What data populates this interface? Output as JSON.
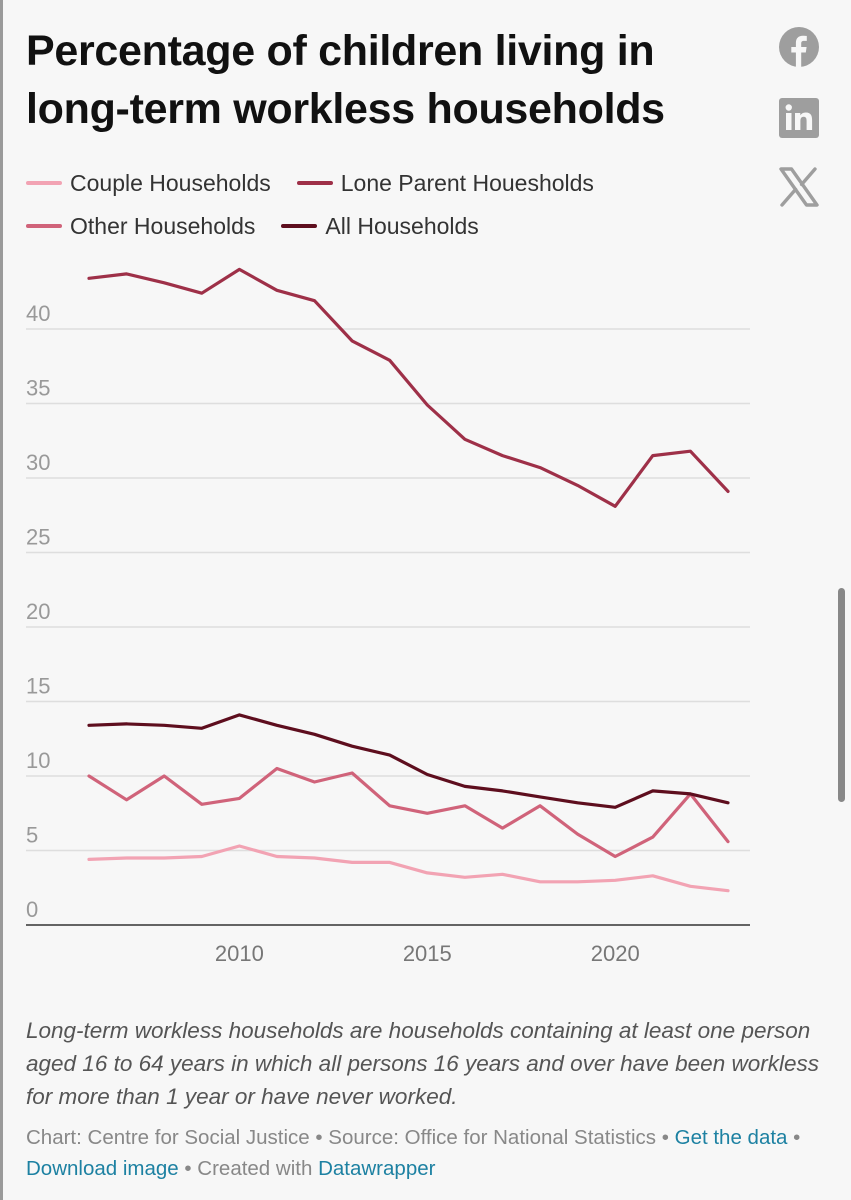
{
  "title": "Percentage of children living in long-term workless households",
  "share_icons": [
    "facebook-icon",
    "linkedin-icon",
    "x-icon"
  ],
  "legend": [
    {
      "label": "Couple Households",
      "color": "#f2a3b3"
    },
    {
      "label": "Lone Parent Houesholds",
      "color": "#9e3048"
    },
    {
      "label": "Other Households",
      "color": "#d0637a"
    },
    {
      "label": "All Households",
      "color": "#5e0e1e"
    }
  ],
  "chart_data": {
    "type": "line",
    "x": [
      2006,
      2007,
      2008,
      2009,
      2010,
      2011,
      2012,
      2013,
      2014,
      2015,
      2016,
      2017,
      2018,
      2019,
      2020,
      2021,
      2022,
      2023
    ],
    "series": [
      {
        "name": "Couple Households",
        "color": "#f2a3b3",
        "values": [
          4.4,
          4.5,
          4.5,
          4.6,
          5.3,
          4.6,
          4.5,
          4.2,
          4.2,
          3.5,
          3.2,
          3.4,
          2.9,
          2.9,
          3.0,
          3.3,
          2.6,
          2.3
        ]
      },
      {
        "name": "Lone Parent Houesholds",
        "color": "#9e3048",
        "values": [
          43.4,
          43.7,
          43.1,
          42.4,
          44.0,
          42.6,
          41.9,
          39.2,
          37.9,
          34.9,
          32.6,
          31.5,
          30.7,
          29.5,
          28.1,
          31.5,
          31.8,
          29.1
        ]
      },
      {
        "name": "Other Households",
        "color": "#d0637a",
        "values": [
          10.0,
          8.4,
          10.0,
          8.1,
          8.5,
          10.5,
          9.6,
          10.2,
          8.0,
          7.5,
          8.0,
          6.5,
          8.0,
          6.1,
          4.6,
          5.9,
          8.8,
          5.6
        ]
      },
      {
        "name": "All Households",
        "color": "#5e0e1e",
        "values": [
          13.4,
          13.5,
          13.4,
          13.2,
          14.1,
          13.4,
          12.8,
          12.0,
          11.4,
          10.1,
          9.3,
          9.0,
          8.6,
          8.2,
          7.9,
          9.0,
          8.8,
          8.2
        ]
      }
    ],
    "y_ticks": [
      "0",
      "5",
      "10",
      "15",
      "20",
      "25",
      "30",
      "35",
      "40"
    ],
    "x_ticks": [
      "2010",
      "2015",
      "2020"
    ],
    "x_tick_values": [
      2010,
      2015,
      2020
    ],
    "xlim": [
      2006,
      2023
    ],
    "ylim": [
      0,
      45
    ],
    "grid": true,
    "legend_position": "top-left"
  },
  "note": "Long-term workless households are households containing at least one person aged 16 to 64 years in which all persons 16 years and over have been workless for more than 1 year or have never worked.",
  "footer": {
    "chart_credit": "Chart: Centre for Social Justice",
    "separator": " • ",
    "source": "Source: Office for National Statistics",
    "get_data": "Get the data",
    "download": "Download image",
    "created_with": "Created with",
    "tool": "Datawrapper"
  }
}
